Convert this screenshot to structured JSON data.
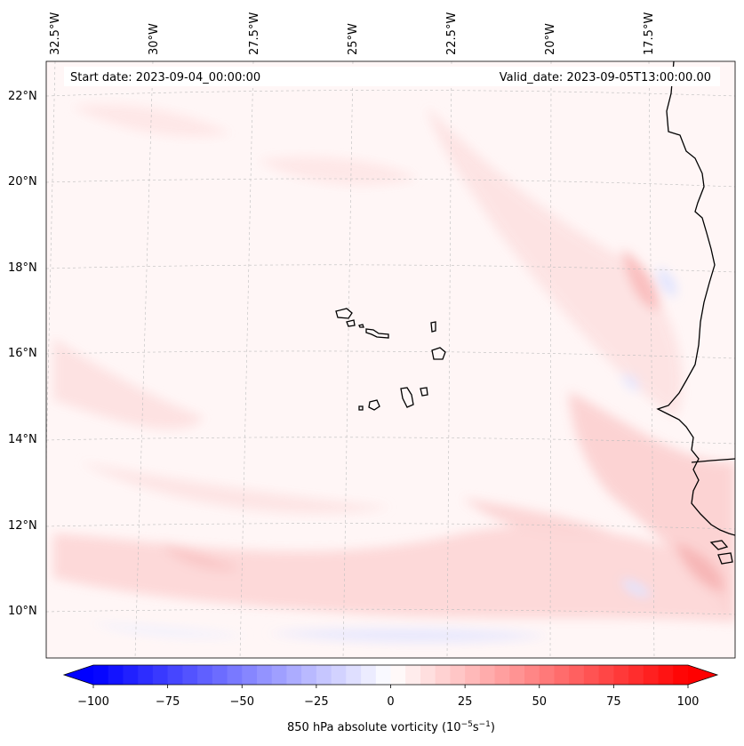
{
  "map": {
    "start_date_label": "Start date: 2023-09-04_00:00:00",
    "valid_date_label": "Valid_date: 2023-09-05T13:00:00.00",
    "lon_labels": [
      "32.5°W",
      "30°W",
      "27.5°W",
      "25°W",
      "22.5°W",
      "20°W",
      "17.5°W"
    ],
    "lat_labels": [
      "22°N",
      "20°N",
      "18°N",
      "16°N",
      "14°N",
      "12°N",
      "10°N"
    ]
  },
  "colorbar": {
    "label_main": "850 hPa absolute vorticity (10",
    "label_exp1": "−5",
    "label_mid": "s",
    "label_exp2": "−1",
    "label_close": ")",
    "ticks": [
      "−100",
      "−75",
      "−50",
      "−25",
      "0",
      "25",
      "50",
      "75",
      "100"
    ],
    "min": -100,
    "max": 100,
    "step": 5,
    "colors": {
      "negative": "#0000ff",
      "neutral": "#ffffff",
      "positive": "#ff0000"
    }
  }
}
